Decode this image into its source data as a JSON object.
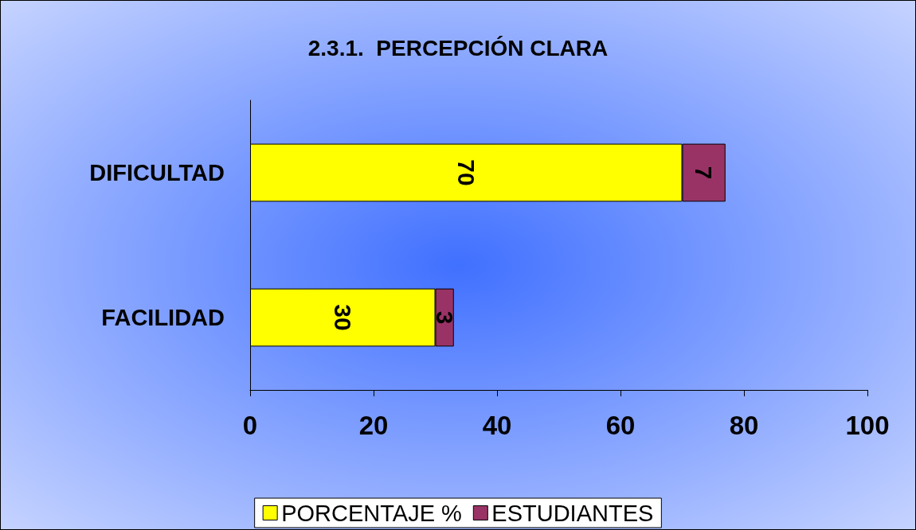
{
  "chart_data": {
    "type": "bar",
    "title": "2.3.1.  PERCEPCIÓN CLARA",
    "orientation": "horizontal",
    "stacked": true,
    "categories": [
      "DIFICULTAD",
      "FACILIDAD"
    ],
    "series": [
      {
        "name": "PORCENTAJE %",
        "color": "#ffff00",
        "values": [
          70,
          30
        ]
      },
      {
        "name": "ESTUDIANTES",
        "color": "#993366",
        "values": [
          7,
          3
        ]
      }
    ],
    "xlim": [
      0,
      100
    ],
    "xticks": [
      0,
      20,
      40,
      60,
      80,
      100
    ],
    "grid": false,
    "legend": "bottom",
    "data_labels": true
  }
}
